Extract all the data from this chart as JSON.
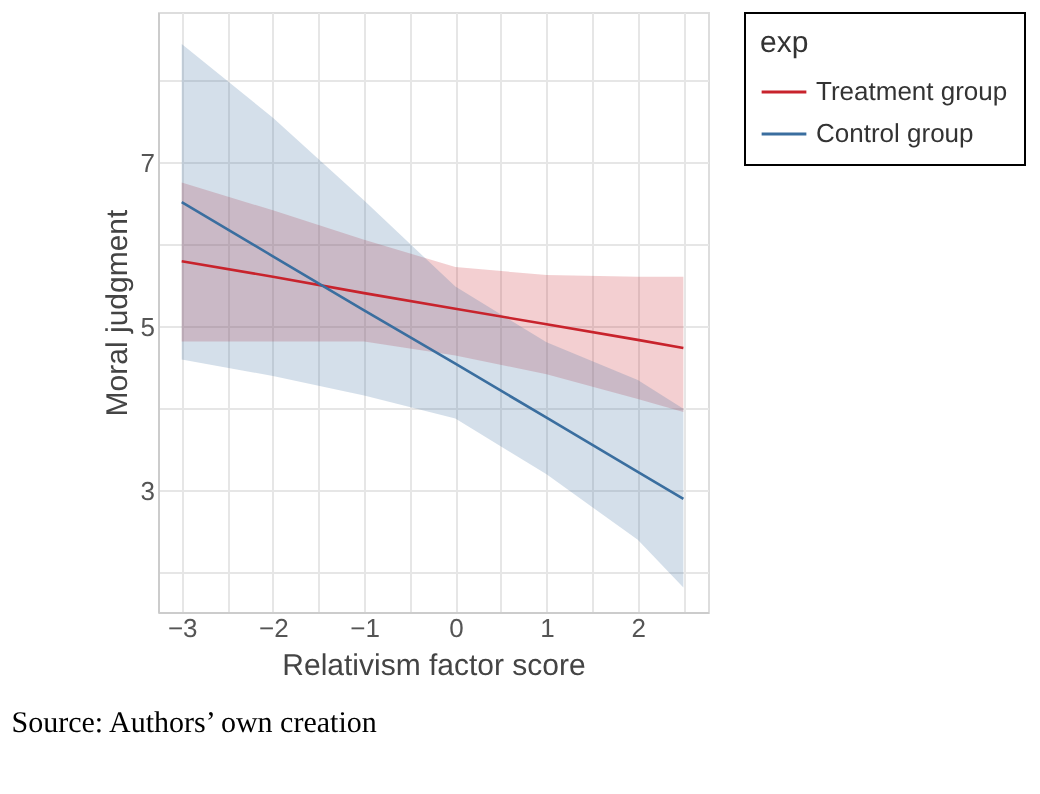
{
  "chart_data": {
    "type": "line",
    "xlabel": "Relativism factor score",
    "ylabel": "Moral judgment",
    "legend_title": "exp",
    "legend": "right",
    "grid": true,
    "annotations": [
      "Source: Authors’ own creation"
    ],
    "xlim": [
      -3.26,
      2.77
    ],
    "ylim": [
      1.52,
      8.84
    ],
    "xticks": [
      {
        "value": -3,
        "label": "−3"
      },
      {
        "value": -2.5,
        "label": null
      },
      {
        "value": -2,
        "label": "−2"
      },
      {
        "value": -1.5,
        "label": null
      },
      {
        "value": -1,
        "label": "−1"
      },
      {
        "value": -0.5,
        "label": null
      },
      0,
      {
        "value": 0.5,
        "label": null
      },
      1,
      {
        "value": 1.5,
        "label": null
      },
      2,
      {
        "value": 2.5,
        "label": null
      }
    ],
    "yticks": [
      {
        "value": 2,
        "label": null
      },
      3,
      {
        "value": 4,
        "label": null
      },
      5,
      {
        "value": 6,
        "label": null
      },
      7,
      {
        "value": 8,
        "label": null
      }
    ],
    "series": [
      {
        "name": "Treatment group",
        "color": "#c8232c",
        "x": [
          -3,
          -2,
          -1,
          0,
          1,
          2,
          2.5
        ],
        "values": [
          5.8,
          5.61,
          5.41,
          5.22,
          5.03,
          4.84,
          4.74
        ],
        "lower": [
          4.82,
          4.82,
          4.82,
          4.65,
          4.42,
          4.12,
          3.96
        ],
        "upper": [
          6.76,
          6.42,
          6.06,
          5.73,
          5.63,
          5.61,
          5.61
        ]
      },
      {
        "name": "Control group",
        "color": "#3a6e9f",
        "x": [
          -3,
          -2,
          -1,
          0,
          1,
          2,
          2.5
        ],
        "values": [
          6.52,
          5.86,
          5.2,
          4.55,
          3.89,
          3.23,
          2.9
        ],
        "lower": [
          4.6,
          4.4,
          4.16,
          3.88,
          3.2,
          2.4,
          1.82
        ],
        "upper": [
          8.45,
          7.55,
          6.54,
          5.49,
          4.81,
          4.35,
          4.0
        ]
      }
    ]
  }
}
